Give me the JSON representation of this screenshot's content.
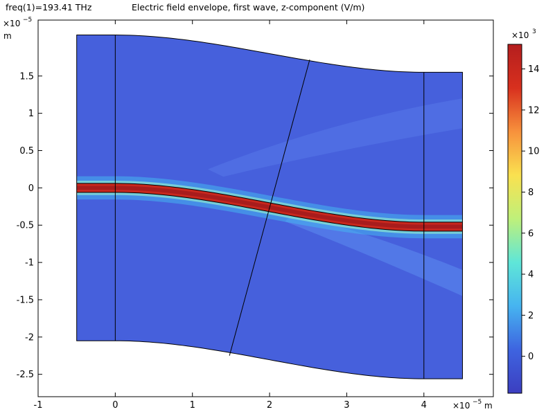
{
  "header": {
    "left": "freq(1)=193.41 THz",
    "right": "Electric field envelope, first wave, z-component (V/m)"
  },
  "chart_data": {
    "type": "heatmap",
    "x_axis": {
      "range": [
        -1.0,
        4.9
      ],
      "ticks": [
        {
          "v": -1,
          "label": "-1"
        },
        {
          "v": 0,
          "label": "0"
        },
        {
          "v": 1,
          "label": "1"
        },
        {
          "v": 2,
          "label": "2"
        },
        {
          "v": 3,
          "label": "3"
        },
        {
          "v": 4,
          "label": "4"
        }
      ],
      "exponent_label": "×10",
      "exponent": "−5",
      "unit": "m"
    },
    "y_axis": {
      "range": [
        -2.8,
        2.25
      ],
      "ticks": [
        {
          "v": 1.5,
          "label": "1.5"
        },
        {
          "v": 1,
          "label": "1"
        },
        {
          "v": 0.5,
          "label": "0.5"
        },
        {
          "v": 0,
          "label": "0"
        },
        {
          "v": -0.5,
          "label": "-0.5"
        },
        {
          "v": -1,
          "label": "-1"
        },
        {
          "v": -1.5,
          "label": "-1.5"
        },
        {
          "v": -2,
          "label": "-2"
        },
        {
          "v": -2.5,
          "label": "-2.5"
        }
      ],
      "exponent_label": "×10",
      "exponent": "−5",
      "unit": "m"
    },
    "domain": {
      "x_min": -0.5,
      "x_max": 4.5,
      "s_bend_start": 0,
      "s_bend_end": 4,
      "top_y_left": 2.05,
      "top_y_right": 1.55,
      "bottom_y_left": -2.05,
      "bottom_y_right": -2.56,
      "interior_lines": [
        {
          "x1": 0,
          "y1": 2.05,
          "x2": 0,
          "y2": -2.05
        },
        {
          "x1": 2.52,
          "y1": 1.72,
          "x2": 1.48,
          "y2": -2.25
        },
        {
          "x1": 4,
          "y1": 1.55,
          "x2": 4,
          "y2": -2.56
        }
      ]
    },
    "waveguide": {
      "center_left": 0,
      "center_right": -0.52,
      "half_width": 0.06
    },
    "colorbar": {
      "min": -1.8,
      "max": 15.2,
      "exponent_label": "×10",
      "exponent": "3",
      "ticks": [
        {
          "v": 0,
          "label": "0"
        },
        {
          "v": 2,
          "label": "2"
        },
        {
          "v": 4,
          "label": "4"
        },
        {
          "v": 6,
          "label": "6"
        },
        {
          "v": 8,
          "label": "8"
        },
        {
          "v": 10,
          "label": "10"
        },
        {
          "v": 12,
          "label": "12"
        },
        {
          "v": 14,
          "label": "14"
        }
      ],
      "colors": [
        "#3c3ec0",
        "#3e64e0",
        "#46b4f0",
        "#5fe6d8",
        "#bff07a",
        "#fae150",
        "#f7913c",
        "#d8301e",
        "#b41e1e"
      ]
    }
  }
}
